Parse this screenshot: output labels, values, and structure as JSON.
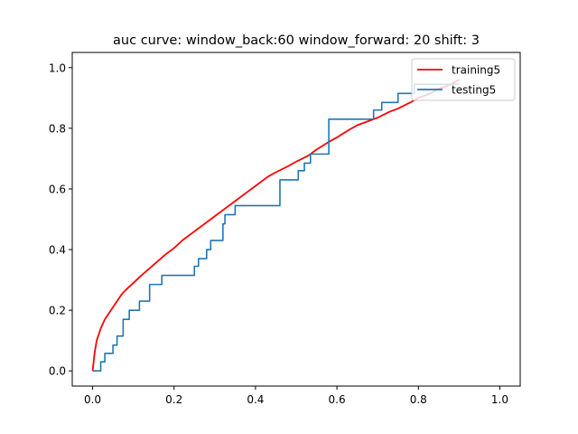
{
  "chart_data": {
    "type": "line",
    "title": "auc curve:  window_back:60 window_forward: 20 shift: 3",
    "xlabel": "",
    "ylabel": "",
    "xlim": [
      -0.05,
      1.05
    ],
    "ylim": [
      -0.05,
      1.05
    ],
    "xticks": [
      0.0,
      0.2,
      0.4,
      0.6,
      0.8,
      1.0
    ],
    "xtick_labels": [
      "0.0",
      "0.2",
      "0.4",
      "0.6",
      "0.8",
      "1.0"
    ],
    "yticks": [
      0.0,
      0.2,
      0.4,
      0.6,
      0.8,
      1.0
    ],
    "ytick_labels": [
      "0.0",
      "0.2",
      "0.4",
      "0.6",
      "0.8",
      "1.0"
    ],
    "grid": false,
    "legend_position": "upper-right",
    "series": [
      {
        "name": "training5",
        "color": "#ff0000",
        "x": [
          0.0,
          0.005,
          0.01,
          0.02,
          0.03,
          0.04,
          0.05,
          0.06,
          0.07,
          0.08,
          0.1,
          0.12,
          0.15,
          0.18,
          0.2,
          0.22,
          0.25,
          0.28,
          0.3,
          0.33,
          0.35,
          0.38,
          0.4,
          0.43,
          0.45,
          0.48,
          0.5,
          0.53,
          0.55,
          0.58,
          0.6,
          0.63,
          0.65,
          0.68,
          0.7,
          0.73,
          0.75,
          0.78,
          0.8,
          0.83,
          0.85,
          0.88,
          0.9
        ],
        "y": [
          0.0,
          0.06,
          0.1,
          0.14,
          0.17,
          0.19,
          0.21,
          0.23,
          0.25,
          0.265,
          0.29,
          0.315,
          0.35,
          0.385,
          0.405,
          0.43,
          0.46,
          0.49,
          0.51,
          0.54,
          0.56,
          0.59,
          0.61,
          0.64,
          0.655,
          0.675,
          0.69,
          0.71,
          0.73,
          0.755,
          0.77,
          0.795,
          0.81,
          0.825,
          0.835,
          0.855,
          0.865,
          0.885,
          0.9,
          0.915,
          0.93,
          0.945,
          0.96
        ]
      },
      {
        "name": "testing5",
        "color": "#1f77b4",
        "step": true,
        "x": [
          0.0,
          0.02,
          0.02,
          0.03,
          0.03,
          0.05,
          0.05,
          0.06,
          0.06,
          0.075,
          0.075,
          0.09,
          0.09,
          0.115,
          0.115,
          0.14,
          0.14,
          0.17,
          0.17,
          0.25,
          0.25,
          0.26,
          0.26,
          0.28,
          0.28,
          0.29,
          0.29,
          0.32,
          0.32,
          0.325,
          0.325,
          0.35,
          0.35,
          0.46,
          0.46,
          0.505,
          0.505,
          0.52,
          0.52,
          0.535,
          0.535,
          0.58,
          0.58,
          0.69,
          0.69,
          0.71,
          0.71,
          0.75,
          0.75,
          0.79,
          0.79,
          0.9
        ],
        "y": [
          0.0,
          0.0,
          0.03,
          0.03,
          0.058,
          0.058,
          0.085,
          0.085,
          0.115,
          0.115,
          0.17,
          0.17,
          0.2,
          0.2,
          0.23,
          0.23,
          0.285,
          0.285,
          0.315,
          0.315,
          0.345,
          0.345,
          0.37,
          0.37,
          0.4,
          0.4,
          0.43,
          0.43,
          0.485,
          0.485,
          0.515,
          0.515,
          0.545,
          0.545,
          0.63,
          0.63,
          0.66,
          0.66,
          0.685,
          0.685,
          0.715,
          0.715,
          0.83,
          0.83,
          0.86,
          0.86,
          0.885,
          0.885,
          0.915,
          0.915,
          0.945,
          0.945
        ]
      }
    ]
  }
}
